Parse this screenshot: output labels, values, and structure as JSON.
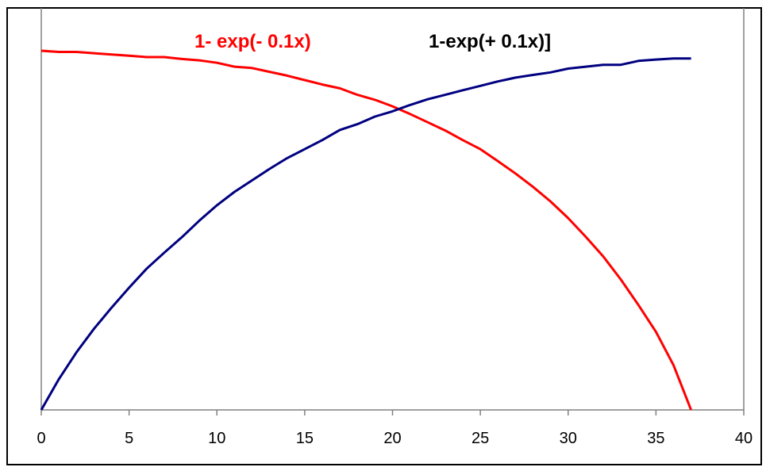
{
  "colors": {
    "series_red": "#ff0000",
    "series_blue": "#000080",
    "axis": "#808080",
    "frame": "#000000",
    "legend_blue_text": "#000000"
  },
  "chart_data": {
    "type": "line",
    "title": "",
    "xlabel": "",
    "ylabel": "",
    "xlim": [
      0,
      40
    ],
    "xticks": [
      0,
      5,
      10,
      15,
      20,
      25,
      30,
      35,
      40
    ],
    "grid": false,
    "legend": "top",
    "series": [
      {
        "name": "1- exp(- 0.1x)",
        "color": "#ff0000",
        "points": [
          [
            0,
            0.973
          ],
          [
            1,
            0.967
          ],
          [
            2,
            0.967
          ],
          [
            3,
            0.96
          ],
          [
            4,
            0.953
          ],
          [
            5,
            0.947
          ],
          [
            6,
            0.94
          ],
          [
            7,
            0.94
          ],
          [
            8,
            0.93
          ],
          [
            9,
            0.923
          ],
          [
            10,
            0.91
          ],
          [
            11,
            0.89
          ],
          [
            12,
            0.883
          ],
          [
            13,
            0.863
          ],
          [
            14,
            0.843
          ],
          [
            15,
            0.82
          ],
          [
            16,
            0.797
          ],
          [
            17,
            0.777
          ],
          [
            18,
            0.743
          ],
          [
            19,
            0.717
          ],
          [
            20,
            0.683
          ],
          [
            21,
            0.643
          ],
          [
            22,
            0.6
          ],
          [
            23,
            0.557
          ],
          [
            24,
            0.507
          ],
          [
            25,
            0.46
          ],
          [
            26,
            0.397
          ],
          [
            27,
            0.333
          ],
          [
            28,
            0.263
          ],
          [
            29,
            0.187
          ],
          [
            30,
            0.1
          ],
          [
            31,
            0.003
          ],
          [
            32,
            -0.1
          ],
          [
            33,
            -0.22
          ],
          [
            34,
            -0.353
          ],
          [
            35,
            -0.493
          ],
          [
            36,
            -0.667
          ],
          [
            37,
            -0.9
          ]
        ]
      },
      {
        "name": "1-exp(+ 0.1x)]",
        "color": "#000080",
        "points": [
          [
            0,
            -0.9
          ],
          [
            1,
            -0.74
          ],
          [
            2,
            -0.6
          ],
          [
            3,
            -0.477
          ],
          [
            4,
            -0.367
          ],
          [
            5,
            -0.263
          ],
          [
            6,
            -0.163
          ],
          [
            7,
            -0.08
          ],
          [
            8,
            0.0
          ],
          [
            9,
            0.087
          ],
          [
            10,
            0.167
          ],
          [
            11,
            0.237
          ],
          [
            12,
            0.297
          ],
          [
            13,
            0.357
          ],
          [
            14,
            0.413
          ],
          [
            15,
            0.46
          ],
          [
            16,
            0.507
          ],
          [
            17,
            0.56
          ],
          [
            18,
            0.59
          ],
          [
            19,
            0.63
          ],
          [
            20,
            0.657
          ],
          [
            21,
            0.69
          ],
          [
            22,
            0.72
          ],
          [
            23,
            0.743
          ],
          [
            24,
            0.767
          ],
          [
            25,
            0.79
          ],
          [
            26,
            0.813
          ],
          [
            27,
            0.833
          ],
          [
            28,
            0.847
          ],
          [
            29,
            0.86
          ],
          [
            30,
            0.88
          ],
          [
            31,
            0.89
          ],
          [
            32,
            0.9
          ],
          [
            33,
            0.9
          ],
          [
            34,
            0.92
          ],
          [
            35,
            0.927
          ],
          [
            36,
            0.933
          ],
          [
            37,
            0.933
          ]
        ]
      }
    ]
  }
}
